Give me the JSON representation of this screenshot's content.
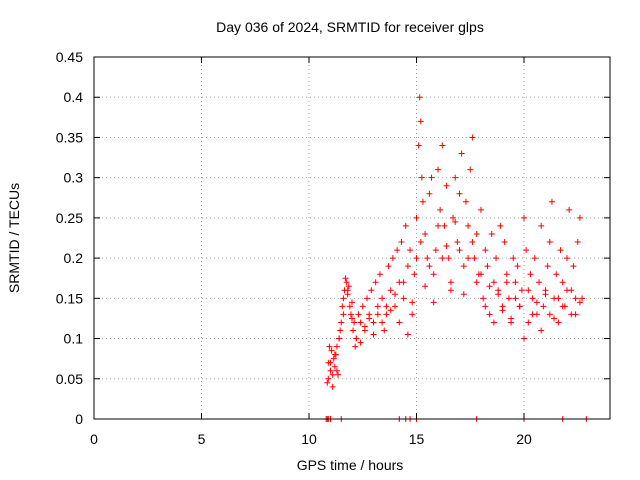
{
  "chart_data": {
    "type": "scatter",
    "title": "Day 036 of 2024, SRMTID for receiver glps",
    "xlabel": "GPS time / hours",
    "ylabel": "SRMTID / TECUs",
    "xlim": [
      0,
      24
    ],
    "ylim": [
      0,
      0.45
    ],
    "xticks": [
      0,
      5,
      10,
      15,
      20
    ],
    "xtick_labels": [
      "0",
      "5",
      "10",
      "15",
      "20"
    ],
    "yticks": [
      0,
      0.05,
      0.1,
      0.15,
      0.2,
      0.25,
      0.3,
      0.35,
      0.4,
      0.45
    ],
    "ytick_labels": [
      "0",
      "0.05",
      "0.1",
      "0.15",
      "0.2",
      "0.25",
      "0.3",
      "0.35",
      "0.4",
      "0.45"
    ],
    "grid": true,
    "marker": "plus",
    "color": "#ff0000",
    "series": [
      {
        "name": "SRMTID",
        "x": [
          10.85,
          10.9,
          10.95,
          11.0,
          11.05,
          11.1,
          11.15,
          11.2,
          11.25,
          11.3,
          11.35,
          11.4,
          11.45,
          11.5,
          11.55,
          11.6,
          11.65,
          11.7,
          11.75,
          11.8,
          11.85,
          11.9,
          11.95,
          12.0,
          12.05,
          12.1,
          12.15,
          12.2,
          12.3,
          12.4,
          12.5,
          12.6,
          12.7,
          12.8,
          12.9,
          13.0,
          13.1,
          13.2,
          13.3,
          13.4,
          13.5,
          13.6,
          13.7,
          13.8,
          13.9,
          14.0,
          14.1,
          14.2,
          14.3,
          14.4,
          14.5,
          14.6,
          14.7,
          14.8,
          14.9,
          15.0,
          15.1,
          15.15,
          15.2,
          15.25,
          15.3,
          15.4,
          15.5,
          15.6,
          15.7,
          15.8,
          15.9,
          16.0,
          16.1,
          16.2,
          16.3,
          16.4,
          16.5,
          16.6,
          16.7,
          16.8,
          16.9,
          17.0,
          17.1,
          17.2,
          17.3,
          17.4,
          17.5,
          17.6,
          17.7,
          17.8,
          17.9,
          18.0,
          18.1,
          18.2,
          18.3,
          18.4,
          18.5,
          18.6,
          18.7,
          18.8,
          18.9,
          19.0,
          19.1,
          19.2,
          19.3,
          19.4,
          19.5,
          19.6,
          19.7,
          19.8,
          19.9,
          20.0,
          20.1,
          20.2,
          20.3,
          20.4,
          20.5,
          20.6,
          20.7,
          20.8,
          20.9,
          21.0,
          21.1,
          21.2,
          21.3,
          21.4,
          21.5,
          21.6,
          21.7,
          21.8,
          21.9,
          22.0,
          22.1,
          22.2,
          22.3,
          22.4,
          22.5,
          22.6,
          22.7,
          10.9,
          11.0,
          11.1,
          11.2,
          11.3,
          11.4,
          11.6,
          11.8,
          12.0,
          12.2,
          12.4,
          12.6,
          12.8,
          13.0,
          13.2,
          13.4,
          13.6,
          13.8,
          14.0,
          14.2,
          14.4,
          14.6,
          14.8,
          15.0,
          15.2,
          15.4,
          15.6,
          15.8,
          16.0,
          16.2,
          16.4,
          16.6,
          16.8,
          17.0,
          17.2,
          17.4,
          17.6,
          17.8,
          18.0,
          18.2,
          18.4,
          18.6,
          18.8,
          19.0,
          19.2,
          19.4,
          19.6,
          19.8,
          20.0,
          20.2,
          20.4,
          20.6,
          20.8,
          21.0,
          21.2,
          21.4,
          21.6,
          21.8,
          22.0,
          22.2,
          22.4,
          22.6,
          10.8,
          10.85,
          10.9,
          11.0,
          11.5,
          14.2,
          14.5,
          14.7,
          15.0,
          17.8,
          20.0,
          21.8,
          22.9
        ],
        "y": [
          0.045,
          0.07,
          0.09,
          0.06,
          0.085,
          0.04,
          0.075,
          0.065,
          0.08,
          0.09,
          0.055,
          0.1,
          0.11,
          0.12,
          0.14,
          0.15,
          0.16,
          0.175,
          0.17,
          0.155,
          0.165,
          0.14,
          0.13,
          0.145,
          0.11,
          0.12,
          0.09,
          0.1,
          0.13,
          0.12,
          0.14,
          0.11,
          0.15,
          0.13,
          0.16,
          0.12,
          0.17,
          0.14,
          0.18,
          0.15,
          0.11,
          0.13,
          0.19,
          0.16,
          0.2,
          0.14,
          0.21,
          0.17,
          0.22,
          0.15,
          0.24,
          0.19,
          0.21,
          0.13,
          0.18,
          0.25,
          0.34,
          0.4,
          0.37,
          0.3,
          0.27,
          0.23,
          0.2,
          0.28,
          0.3,
          0.18,
          0.21,
          0.31,
          0.26,
          0.34,
          0.24,
          0.29,
          0.2,
          0.17,
          0.25,
          0.3,
          0.22,
          0.28,
          0.33,
          0.19,
          0.27,
          0.24,
          0.31,
          0.35,
          0.2,
          0.23,
          0.18,
          0.26,
          0.15,
          0.21,
          0.19,
          0.13,
          0.23,
          0.17,
          0.2,
          0.16,
          0.24,
          0.14,
          0.22,
          0.18,
          0.15,
          0.12,
          0.2,
          0.17,
          0.19,
          0.14,
          0.16,
          0.25,
          0.21,
          0.12,
          0.18,
          0.15,
          0.2,
          0.13,
          0.17,
          0.24,
          0.14,
          0.16,
          0.19,
          0.22,
          0.27,
          0.15,
          0.18,
          0.12,
          0.21,
          0.17,
          0.14,
          0.2,
          0.26,
          0.16,
          0.19,
          0.13,
          0.22,
          0.25,
          0.15,
          0.05,
          0.07,
          0.055,
          0.08,
          0.06,
          0.1,
          0.13,
          0.16,
          0.125,
          0.1,
          0.095,
          0.115,
          0.125,
          0.105,
          0.13,
          0.12,
          0.14,
          0.135,
          0.155,
          0.12,
          0.17,
          0.105,
          0.145,
          0.2,
          0.22,
          0.165,
          0.19,
          0.145,
          0.24,
          0.2,
          0.215,
          0.16,
          0.245,
          0.21,
          0.155,
          0.2,
          0.22,
          0.17,
          0.18,
          0.14,
          0.165,
          0.12,
          0.155,
          0.135,
          0.17,
          0.125,
          0.15,
          0.14,
          0.1,
          0.16,
          0.13,
          0.145,
          0.11,
          0.155,
          0.13,
          0.125,
          0.15,
          0.14,
          0.16,
          0.13,
          0.15,
          0.145,
          0.0,
          0.0,
          0.0,
          0.0,
          0.0,
          0.0,
          0.0,
          0.0,
          0.0,
          0.0,
          0.0,
          0.0,
          0.0
        ]
      }
    ]
  }
}
